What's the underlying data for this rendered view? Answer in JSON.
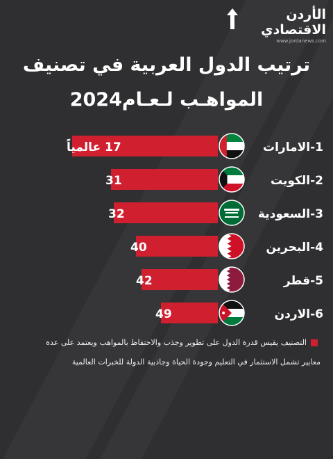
{
  "brand": {
    "name": "الأردن الاقتصادي",
    "url": "www.jordanews.com"
  },
  "title": {
    "line1": "ترتيب الدول العربية في تصنيف",
    "line2": "المواهـب لـعـام2024"
  },
  "colors": {
    "background": "#2f2f31",
    "bar": "#d0202f",
    "text": "#ffffff"
  },
  "chart_data": {
    "type": "bar",
    "orientation": "horizontal",
    "categories": [
      "1-الامارات",
      "2-الكويت",
      "3-السعودية",
      "4-البحرين",
      "5-قطر",
      "6-الاردن"
    ],
    "values": [
      17,
      31,
      32,
      40,
      42,
      49
    ],
    "value_labels": [
      "17 عالمياً",
      "31",
      "32",
      "40",
      "42",
      "49"
    ],
    "flags": [
      "uae-flag-icon",
      "kuwait-flag-icon",
      "saudi-flag-icon",
      "bahrain-flag-icon",
      "qatar-flag-icon",
      "jordan-flag-icon"
    ],
    "bar_scale": "global rank — smaller rank drawn as a longer bar"
  },
  "note": {
    "line1": "التصنيف يقيس قدرة الدول على تطوير وجذب والاحتفاظ بالمواهب ويعتمد على عدة",
    "line2": "معايير تشمل الاستثمار في التعليم وجودة الحياة وجاذبية الدولة للخبرات العالمية"
  }
}
